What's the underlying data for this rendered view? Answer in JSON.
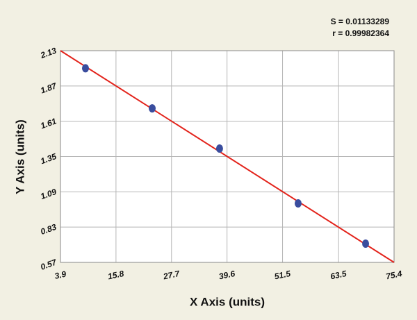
{
  "chart_data": {
    "type": "scatter",
    "annotations": [
      "S = 0.01133289",
      "r = 0.99982364"
    ],
    "x_label": "X Axis (units)",
    "y_label": "Y Axis (units)",
    "x": [
      9.26,
      23.56,
      38.0,
      54.84,
      69.3
    ],
    "values": [
      2.0,
      1.705,
      1.409,
      1.005,
      0.708
    ],
    "color": "#3a4d9e",
    "fit": {
      "x": [
        3.9,
        75.4
      ],
      "values": [
        2.13,
        0.57
      ],
      "color": "#e3231b"
    },
    "xlim": [
      3.9,
      75.4
    ],
    "ylim": [
      0.57,
      2.13
    ],
    "xticks": [
      3.9,
      15.8,
      27.7,
      39.6,
      51.5,
      63.5,
      75.4
    ],
    "yticks": [
      0.57,
      0.83,
      1.09,
      1.35,
      1.61,
      1.87,
      2.13
    ],
    "grid": true
  }
}
